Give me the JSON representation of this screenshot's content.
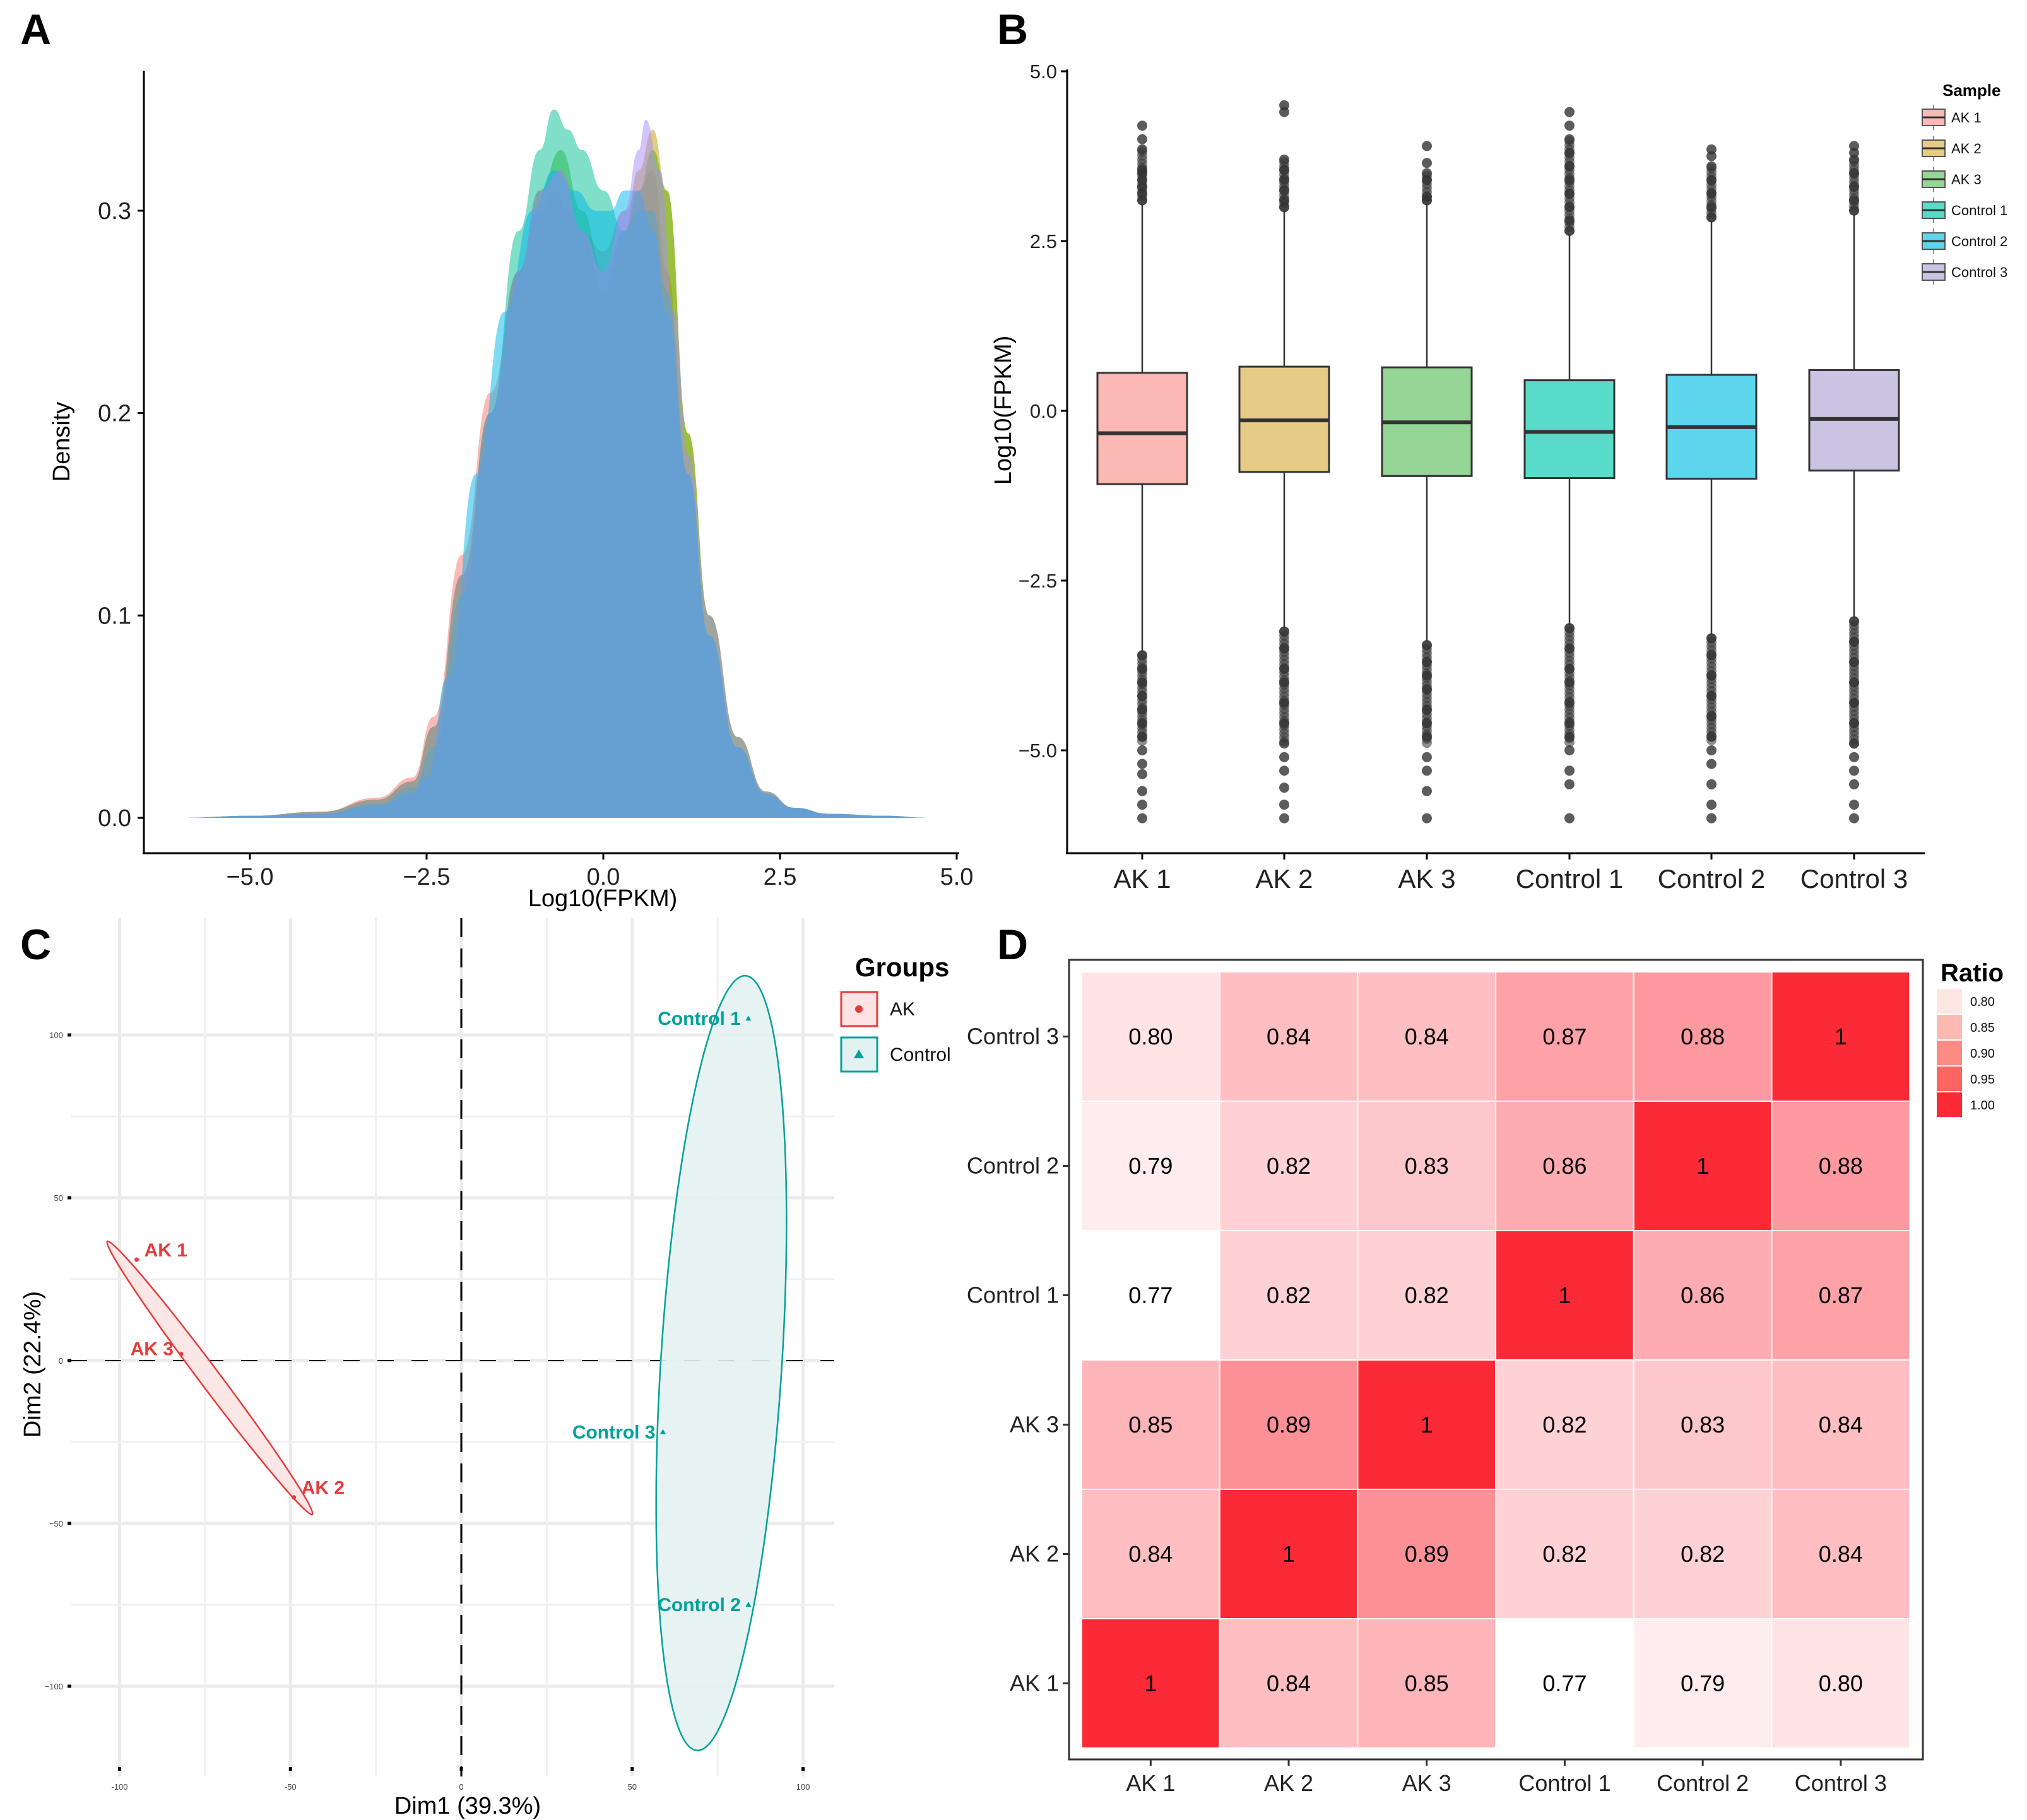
{
  "panels": {
    "A": {
      "label": "A"
    },
    "B": {
      "label": "B"
    },
    "C": {
      "label": "C"
    },
    "D": {
      "label": "D"
    }
  },
  "chart_data": [
    {
      "id": "A",
      "type": "area",
      "title": "",
      "xlabel": "Log10(FPKM)",
      "ylabel": "Density",
      "xlim": [
        -6.3,
        5.0
      ],
      "ylim": [
        -0.02,
        0.37
      ],
      "xticks": [
        -5.0,
        -2.5,
        0.0,
        2.5,
        5.0
      ],
      "xtick_labels": [
        "−5.0",
        "−2.5",
        "0.0",
        "2.5",
        "5.0"
      ],
      "yticks": [
        0.0,
        0.1,
        0.2,
        0.3
      ],
      "ytick_labels": [
        "0.0",
        "0.1",
        "0.2",
        "0.3"
      ],
      "grid": false,
      "series": [
        {
          "name": "AK 1",
          "color": "#F8766D",
          "x": [
            -6,
            -5,
            -4,
            -3.2,
            -2.7,
            -2.4,
            -2.0,
            -1.6,
            -1.2,
            -0.9,
            -0.7,
            -0.5,
            -0.3,
            0.0,
            0.3,
            0.5,
            0.7,
            0.9,
            1.2,
            1.5,
            1.9,
            2.3,
            2.7,
            3.2,
            4.0,
            4.6
          ],
          "y": [
            0,
            0.001,
            0.003,
            0.01,
            0.02,
            0.05,
            0.13,
            0.21,
            0.27,
            0.3,
            0.31,
            0.3,
            0.29,
            0.28,
            0.3,
            0.31,
            0.32,
            0.27,
            0.17,
            0.09,
            0.035,
            0.012,
            0.005,
            0.002,
            0.001,
            0
          ]
        },
        {
          "name": "AK 2",
          "color": "#C49A00",
          "x": [
            -6,
            -5,
            -4,
            -3.2,
            -2.7,
            -2.4,
            -2.0,
            -1.6,
            -1.2,
            -0.9,
            -0.6,
            -0.3,
            0.0,
            0.3,
            0.5,
            0.7,
            0.9,
            1.2,
            1.5,
            1.9,
            2.3,
            2.7,
            3.2,
            4.0,
            4.6
          ],
          "y": [
            0,
            0.001,
            0.003,
            0.009,
            0.018,
            0.045,
            0.12,
            0.2,
            0.27,
            0.31,
            0.32,
            0.29,
            0.26,
            0.29,
            0.32,
            0.34,
            0.31,
            0.19,
            0.1,
            0.04,
            0.013,
            0.005,
            0.002,
            0.001,
            0
          ]
        },
        {
          "name": "AK 3",
          "color": "#53B400",
          "x": [
            -6,
            -5,
            -4,
            -3.2,
            -2.7,
            -2.4,
            -2.0,
            -1.6,
            -1.2,
            -0.9,
            -0.6,
            -0.3,
            0.0,
            0.3,
            0.5,
            0.7,
            0.9,
            1.2,
            1.5,
            1.9,
            2.3,
            2.7,
            3.2,
            4.0,
            4.6
          ],
          "y": [
            0,
            0.001,
            0.003,
            0.009,
            0.018,
            0.045,
            0.12,
            0.2,
            0.27,
            0.31,
            0.33,
            0.3,
            0.27,
            0.29,
            0.31,
            0.33,
            0.31,
            0.19,
            0.1,
            0.04,
            0.013,
            0.005,
            0.002,
            0.001,
            0
          ]
        },
        {
          "name": "Control 1",
          "color": "#00C094",
          "x": [
            -6,
            -5,
            -4,
            -3.2,
            -2.7,
            -2.4,
            -2.0,
            -1.6,
            -1.2,
            -0.9,
            -0.7,
            -0.5,
            -0.3,
            0.0,
            0.3,
            0.5,
            0.7,
            0.9,
            1.2,
            1.5,
            1.9,
            2.3,
            2.7,
            3.2,
            4.0,
            4.6
          ],
          "y": [
            0,
            0.001,
            0.002,
            0.007,
            0.015,
            0.035,
            0.11,
            0.2,
            0.29,
            0.33,
            0.35,
            0.34,
            0.33,
            0.31,
            0.29,
            0.3,
            0.3,
            0.26,
            0.17,
            0.09,
            0.035,
            0.012,
            0.005,
            0.002,
            0.001,
            0
          ]
        },
        {
          "name": "Control 2",
          "color": "#00B6EB",
          "x": [
            -6,
            -5,
            -4,
            -3.2,
            -2.7,
            -2.5,
            -2.2,
            -1.8,
            -1.4,
            -1.0,
            -0.7,
            -0.4,
            -0.1,
            0.1,
            0.3,
            0.5,
            0.7,
            0.9,
            1.2,
            1.5,
            1.9,
            2.3,
            2.7,
            3.2,
            4.0,
            4.6
          ],
          "y": [
            0,
            0.001,
            0.002,
            0.006,
            0.012,
            0.02,
            0.07,
            0.17,
            0.25,
            0.3,
            0.32,
            0.31,
            0.3,
            0.3,
            0.31,
            0.31,
            0.29,
            0.25,
            0.17,
            0.09,
            0.035,
            0.012,
            0.005,
            0.002,
            0.001,
            0
          ]
        },
        {
          "name": "Control 3",
          "color": "#A58AFF",
          "x": [
            -6,
            -5,
            -4,
            -3.2,
            -2.7,
            -2.4,
            -2.0,
            -1.6,
            -1.2,
            -0.9,
            -0.6,
            -0.3,
            0.0,
            0.3,
            0.5,
            0.6,
            0.8,
            1.0,
            1.2,
            1.5,
            1.9,
            2.3,
            2.7,
            3.2,
            4.0,
            4.6
          ],
          "y": [
            0,
            0.001,
            0.003,
            0.009,
            0.018,
            0.045,
            0.12,
            0.2,
            0.27,
            0.31,
            0.32,
            0.29,
            0.27,
            0.3,
            0.33,
            0.345,
            0.32,
            0.25,
            0.18,
            0.1,
            0.04,
            0.013,
            0.005,
            0.002,
            0.001,
            0
          ]
        }
      ]
    },
    {
      "id": "B",
      "type": "box",
      "title": "",
      "xlabel": "",
      "ylabel": "Log10(FPKM)",
      "ylim": [
        -6.5,
        5.0
      ],
      "yticks": [
        5.0,
        2.5,
        0.0,
        -2.5,
        -5.0
      ],
      "ytick_labels": [
        "5.0",
        "2.5",
        "0.0",
        "−2.5",
        "−5.0"
      ],
      "categories": [
        "AK 1",
        "AK 2",
        "AK 3",
        "Control 1",
        "Control 2",
        "Control 3"
      ],
      "legend": {
        "title": "Sample",
        "position": "top-right"
      },
      "series": [
        {
          "name": "AK 1",
          "color": "#FBB8B5",
          "q1": -1.08,
          "median": -0.33,
          "q3": 0.56,
          "whisker_low": -3.55,
          "whisker_high": 3.05,
          "outliers_high": [
            3.1,
            3.2,
            3.3,
            3.4,
            3.5,
            3.55,
            3.85,
            4.0,
            4.2
          ],
          "outliers_low": [
            -3.6,
            -3.8,
            -4.0,
            -4.2,
            -4.4,
            -4.6,
            -4.8,
            -5.0,
            -5.2,
            -5.35,
            -5.6,
            -5.8,
            -6.0
          ]
        },
        {
          "name": "AK 2",
          "color": "#E5CB86",
          "q1": -0.9,
          "median": -0.14,
          "q3": 0.65,
          "whisker_low": -3.2,
          "whisker_high": 2.95,
          "outliers_high": [
            3.0,
            3.1,
            3.25,
            3.4,
            3.55,
            3.7,
            4.4,
            4.5
          ],
          "outliers_low": [
            -3.25,
            -3.5,
            -3.8,
            -4.0,
            -4.3,
            -4.6,
            -4.9,
            -5.1,
            -5.3,
            -5.55,
            -5.8,
            -6.0
          ]
        },
        {
          "name": "AK 3",
          "color": "#95D696",
          "q1": -0.96,
          "median": -0.17,
          "q3": 0.64,
          "whisker_low": -3.4,
          "whisker_high": 3.05,
          "outliers_high": [
            3.1,
            3.15,
            3.4,
            3.5,
            3.65,
            3.9
          ],
          "outliers_low": [
            -3.45,
            -3.7,
            -3.9,
            -4.1,
            -4.4,
            -4.6,
            -4.8,
            -5.1,
            -5.3,
            -5.6,
            -6.0
          ]
        },
        {
          "name": "Control 1",
          "color": "#58DBC8",
          "q1": -0.99,
          "median": -0.31,
          "q3": 0.45,
          "whisker_low": -3.15,
          "whisker_high": 2.6,
          "outliers_high": [
            2.65,
            2.8,
            3.0,
            3.2,
            3.4,
            3.6,
            3.8,
            4.0,
            4.2,
            4.4
          ],
          "outliers_low": [
            -3.2,
            -3.5,
            -3.8,
            -4.0,
            -4.3,
            -4.6,
            -4.8,
            -5.0,
            -5.3,
            -5.5,
            -6.0
          ]
        },
        {
          "name": "Control 2",
          "color": "#5DD5EC",
          "q1": -1.0,
          "median": -0.24,
          "q3": 0.53,
          "whisker_low": -3.3,
          "whisker_high": 2.8,
          "outliers_high": [
            2.85,
            3.0,
            3.2,
            3.4,
            3.6,
            3.75,
            3.85
          ],
          "outliers_low": [
            -3.35,
            -3.6,
            -3.9,
            -4.2,
            -4.5,
            -4.8,
            -5.0,
            -5.2,
            -5.5,
            -5.8,
            -6.0
          ]
        },
        {
          "name": "Control 3",
          "color": "#CBC3E2",
          "q1": -0.88,
          "median": -0.12,
          "q3": 0.6,
          "whisker_low": -3.05,
          "whisker_high": 2.9,
          "outliers_high": [
            2.95,
            3.1,
            3.3,
            3.5,
            3.7,
            3.8,
            3.9
          ],
          "outliers_low": [
            -3.1,
            -3.4,
            -3.7,
            -4.0,
            -4.3,
            -4.6,
            -4.9,
            -5.1,
            -5.3,
            -5.5,
            -5.8,
            -6.0
          ]
        }
      ]
    },
    {
      "id": "C",
      "type": "scatter",
      "title": "",
      "xlabel": "Dim1 (39.3%)",
      "ylabel": "Dim2 (22.4%)",
      "xlim": [
        -105,
        102
      ],
      "ylim": [
        -125,
        122
      ],
      "xticks": [
        -100,
        -50,
        0,
        50,
        100
      ],
      "xtick_labels": [
        "-100",
        "-50",
        "0",
        "50",
        "100"
      ],
      "yticks": [
        100,
        50,
        0,
        -50,
        -100
      ],
      "ytick_labels": [
        "100",
        "50",
        "0",
        "−50",
        "−100"
      ],
      "grid": true,
      "legend": {
        "title": "Groups",
        "position": "top-right",
        "entries": [
          {
            "name": "AK",
            "marker": "circle",
            "color": "#E41A1C"
          },
          {
            "name": "Control",
            "marker": "triangle",
            "color": "#00A19A"
          }
        ]
      },
      "series": [
        {
          "name": "AK",
          "color": "#E83A3A",
          "marker": "circle",
          "points": [
            {
              "label": "AK 1",
              "x": -95,
              "y": 31
            },
            {
              "label": "AK 3",
              "x": -82,
              "y": 2
            },
            {
              "label": "AK 2",
              "x": -49,
              "y": -42
            }
          ],
          "ellipse": {
            "cx": -75.5,
            "cy": -3,
            "rx": 52,
            "ry": 3.4,
            "angle_deg": -48
          }
        },
        {
          "name": "Control",
          "color": "#00A19A",
          "marker": "triangle",
          "points": [
            {
              "label": "Control 1",
              "x": 84,
              "y": 105
            },
            {
              "label": "Control 3",
              "x": 59,
              "y": -22
            },
            {
              "label": "Control 2",
              "x": 84,
              "y": -75
            }
          ],
          "ellipse": {
            "cx": 75,
            "cy": 1,
            "rx": 17.5,
            "ry": 114,
            "angle_deg": 1.5
          }
        }
      ]
    },
    {
      "id": "D",
      "type": "heatmap",
      "title": "",
      "xlabel": "",
      "ylabel": "",
      "x_categories": [
        "AK 1",
        "AK 2",
        "AK 3",
        "Control 1",
        "Control 2",
        "Control 3"
      ],
      "y_categories": [
        "AK 1",
        "AK 2",
        "AK 3",
        "Control 1",
        "Control 2",
        "Control 3"
      ],
      "values": [
        [
          1,
          0.84,
          0.85,
          0.77,
          0.79,
          0.8
        ],
        [
          0.84,
          1,
          0.89,
          0.82,
          0.82,
          0.84
        ],
        [
          0.85,
          0.89,
          1,
          0.82,
          0.83,
          0.84
        ],
        [
          0.77,
          0.82,
          0.82,
          1,
          0.86,
          0.87
        ],
        [
          0.79,
          0.82,
          0.83,
          0.86,
          1,
          0.88
        ],
        [
          0.8,
          0.84,
          0.84,
          0.87,
          0.88,
          1
        ]
      ],
      "labels": [
        [
          "1",
          "0.84",
          "0.85",
          "0.77",
          "0.79",
          "0.80"
        ],
        [
          "0.84",
          "1",
          "0.89",
          "0.82",
          "0.82",
          "0.84"
        ],
        [
          "0.85",
          "0.89",
          "1",
          "0.82",
          "0.83",
          "0.84"
        ],
        [
          "0.77",
          "0.82",
          "0.82",
          "1",
          "0.86",
          "0.87"
        ],
        [
          "0.79",
          "0.82",
          "0.83",
          "0.86",
          "1",
          "0.88"
        ],
        [
          "0.80",
          "0.84",
          "0.84",
          "0.87",
          "0.88",
          "1"
        ]
      ],
      "color_scale": {
        "low": 0.77,
        "high": 1.0,
        "low_color": "#FFFFFF",
        "high_color": "#FC2A37"
      },
      "legend": {
        "title": "Ratio",
        "position": "top-right",
        "entries": [
          {
            "label": "0.80",
            "color": "#FEE6E3"
          },
          {
            "label": "0.85",
            "color": "#FCB9B2"
          },
          {
            "label": "0.90",
            "color": "#FC8B84"
          },
          {
            "label": "0.95",
            "color": "#FC6560"
          },
          {
            "label": "1.00",
            "color": "#FC2A37"
          }
        ]
      }
    }
  ]
}
